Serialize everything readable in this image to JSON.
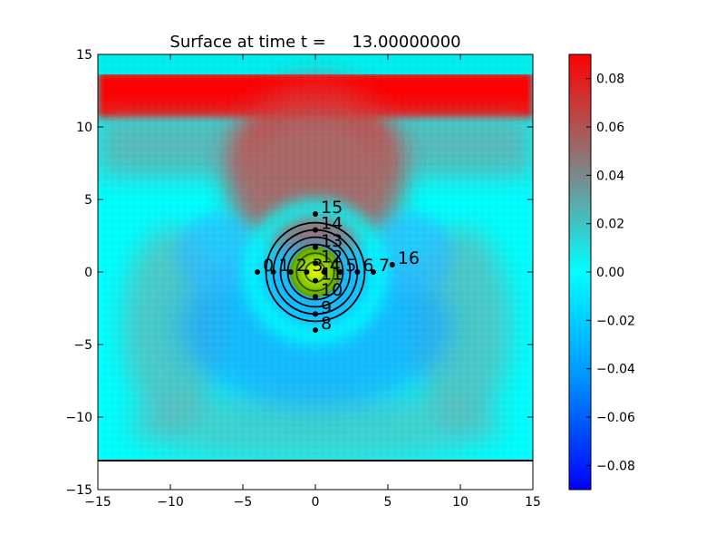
{
  "chart_data": {
    "type": "heatmap",
    "title": "Surface at time t =     13.00000000",
    "xlabel": "",
    "ylabel": "",
    "xlim": [
      -15,
      15
    ],
    "ylim": [
      -15,
      15
    ],
    "xticks": [
      "−15",
      "−10",
      "−5",
      "0",
      "5",
      "10",
      "15"
    ],
    "yticks": [
      "15",
      "10",
      "5",
      "0",
      "−5",
      "−10",
      "−15"
    ],
    "domain_bottom_y": -13,
    "colorbar": {
      "range": [
        -0.09,
        0.09
      ],
      "ticks": [
        "0.08",
        "0.06",
        "0.04",
        "0.02",
        "0.00",
        "−0.02",
        "−0.04",
        "−0.06",
        "−0.08"
      ],
      "colors": {
        "low": "#0000ff",
        "mid_low": "#00b4ff",
        "zero": "#00ffff",
        "mid_high": "#808080",
        "high": "#ff0000"
      }
    },
    "contour_center": [
      0,
      0
    ],
    "contour_radii": [
      0.7,
      1.3,
      1.9,
      2.4,
      2.9,
      3.4
    ],
    "gauges": [
      {
        "label": "0",
        "x": -4.0,
        "y": 0
      },
      {
        "label": "1",
        "x": -2.9,
        "y": 0
      },
      {
        "label": "2",
        "x": -1.7,
        "y": 0
      },
      {
        "label": "3",
        "x": -0.6,
        "y": 0
      },
      {
        "label": "4",
        "x": 0.6,
        "y": 0
      },
      {
        "label": "5",
        "x": 1.7,
        "y": 0
      },
      {
        "label": "6",
        "x": 2.9,
        "y": 0
      },
      {
        "label": "7",
        "x": 4.0,
        "y": 0
      },
      {
        "label": "8",
        "x": 0,
        "y": -4.0
      },
      {
        "label": "9",
        "x": 0,
        "y": -2.9
      },
      {
        "label": "10",
        "x": 0,
        "y": -1.7
      },
      {
        "label": "11",
        "x": 0,
        "y": -0.6
      },
      {
        "label": "12",
        "x": 0,
        "y": 0.6
      },
      {
        "label": "13",
        "x": 0,
        "y": 1.7
      },
      {
        "label": "14",
        "x": 0,
        "y": 2.9
      },
      {
        "label": "15",
        "x": 0,
        "y": 4.0
      },
      {
        "label": "16",
        "x": 5.3,
        "y": 0.5
      }
    ]
  }
}
